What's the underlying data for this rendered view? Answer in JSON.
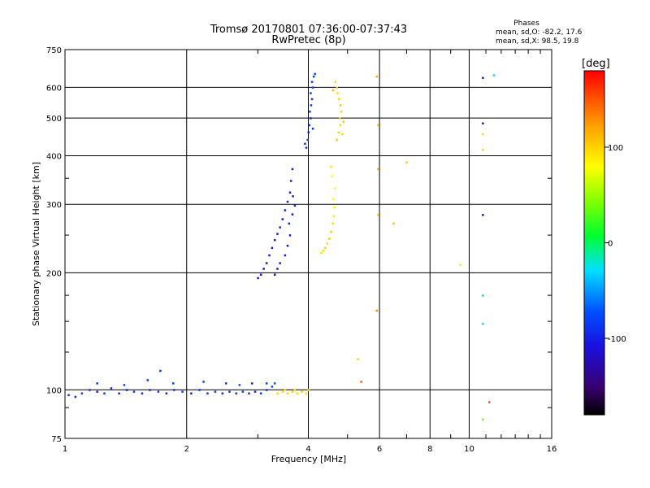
{
  "chart_data": {
    "type": "scatter",
    "title": "Tromsø 20170801 07:36:00-07:37:43",
    "subtitle": "RwPretec (8p)",
    "xlabel": "Frequency [MHz]",
    "ylabel": "Stationary phase Virtual Height [km]",
    "x_scale": "log",
    "y_scale": "log",
    "xlim": [
      1,
      16
    ],
    "ylim": [
      75,
      750
    ],
    "x_ticks": [
      1,
      2,
      4,
      6,
      8,
      10,
      16
    ],
    "x_tick_labels": [
      "1",
      "2",
      "4",
      "6",
      "8",
      "10",
      "16"
    ],
    "x_minor_ticks": [
      3,
      5,
      7,
      9,
      11,
      12,
      13,
      14,
      15
    ],
    "y_ticks": [
      75,
      100,
      200,
      300,
      400,
      500,
      600,
      750
    ],
    "y_tick_labels": [
      "75",
      "100",
      "200",
      "300",
      "400",
      "500",
      "600",
      "750"
    ],
    "y_minor_ticks": [
      90,
      125,
      150,
      175,
      250,
      350
    ],
    "grid": true,
    "legend_block": {
      "heading": "Phases",
      "line1": "mean, sd,O: -82.2, 17.6",
      "line2": "mean, sd,X:  98.5, 19.8"
    },
    "colorbar": {
      "label": "[deg]",
      "range": [
        -180,
        180
      ],
      "ticks": [
        100,
        0,
        -100
      ],
      "tick_labels": [
        "100",
        "0",
        "-100"
      ],
      "colormap": "rainbow (black-purple-blue-cyan-green-yellow-orange-red)"
    },
    "series": [
      {
        "mode": "O",
        "mean_phase": -82.2,
        "points": [
          [
            1.02,
            97,
            -95
          ],
          [
            1.06,
            96,
            -90
          ],
          [
            1.1,
            98,
            -80
          ],
          [
            1.15,
            100,
            -90
          ],
          [
            1.2,
            99,
            -100
          ],
          [
            1.25,
            98,
            -85
          ],
          [
            1.3,
            101,
            -95
          ],
          [
            1.36,
            98,
            -90
          ],
          [
            1.42,
            100,
            -100
          ],
          [
            1.48,
            99,
            -88
          ],
          [
            1.55,
            98,
            -92
          ],
          [
            1.62,
            100,
            -95
          ],
          [
            1.7,
            99,
            -85
          ],
          [
            1.78,
            98,
            -100
          ],
          [
            1.86,
            100,
            -90
          ],
          [
            1.95,
            99,
            -85
          ],
          [
            2.05,
            98,
            -95
          ],
          [
            2.15,
            100,
            -88
          ],
          [
            2.25,
            98,
            -90
          ],
          [
            2.35,
            99,
            -85
          ],
          [
            2.45,
            98,
            -95
          ],
          [
            2.55,
            99,
            -92
          ],
          [
            2.65,
            98,
            -88
          ],
          [
            2.75,
            99,
            -80
          ],
          [
            2.85,
            98,
            -90
          ],
          [
            2.95,
            99,
            -95
          ],
          [
            3.05,
            98,
            -85
          ],
          [
            3.15,
            100,
            -90
          ],
          [
            3.25,
            102,
            -75
          ],
          [
            3.3,
            104,
            -70
          ],
          [
            1.2,
            104,
            -85
          ],
          [
            1.4,
            103,
            -78
          ],
          [
            1.6,
            106,
            -82
          ],
          [
            1.85,
            104,
            -88
          ],
          [
            2.2,
            105,
            -80
          ],
          [
            2.5,
            104,
            -85
          ],
          [
            2.7,
            103,
            -72
          ],
          [
            2.9,
            104,
            -90
          ],
          [
            3.15,
            104,
            -82
          ],
          [
            1.72,
            112,
            -85
          ],
          [
            3.0,
            194,
            -110
          ],
          [
            3.05,
            198,
            -105
          ],
          [
            3.1,
            205,
            -112
          ],
          [
            3.15,
            212,
            -108
          ],
          [
            3.2,
            222,
            -100
          ],
          [
            3.25,
            232,
            -105
          ],
          [
            3.3,
            243,
            -110
          ],
          [
            3.35,
            252,
            -102
          ],
          [
            3.4,
            262,
            -98
          ],
          [
            3.45,
            275,
            -104
          ],
          [
            3.5,
            290,
            -100
          ],
          [
            3.55,
            305,
            -96
          ],
          [
            3.6,
            322,
            -102
          ],
          [
            3.62,
            345,
            -98
          ],
          [
            3.65,
            370,
            -100
          ],
          [
            3.3,
            198,
            -118
          ],
          [
            3.35,
            205,
            -112
          ],
          [
            3.4,
            212,
            -108
          ],
          [
            3.5,
            222,
            -104
          ],
          [
            3.55,
            235,
            -106
          ],
          [
            3.6,
            250,
            -100
          ],
          [
            3.58,
            268,
            -95
          ],
          [
            3.65,
            283,
            -104
          ],
          [
            3.7,
            298,
            -96
          ],
          [
            3.66,
            315,
            -102
          ],
          [
            3.95,
            420,
            -90
          ],
          [
            3.98,
            440,
            -88
          ],
          [
            4.0,
            460,
            -92
          ],
          [
            4.02,
            480,
            -85
          ],
          [
            4.05,
            500,
            -90
          ],
          [
            4.03,
            520,
            -82
          ],
          [
            4.06,
            540,
            -88
          ],
          [
            4.08,
            560,
            -85
          ],
          [
            4.05,
            580,
            -80
          ],
          [
            4.1,
            600,
            -84
          ],
          [
            4.08,
            620,
            -78
          ],
          [
            4.12,
            640,
            -82
          ],
          [
            4.15,
            650,
            -80
          ],
          [
            3.92,
            430,
            -86
          ],
          [
            4.1,
            470,
            -88
          ],
          [
            10.8,
            282,
            -105
          ],
          [
            10.8,
            635,
            -98
          ],
          [
            10.8,
            485,
            -100
          ]
        ]
      },
      {
        "mode": "X",
        "mean_phase": 98.5,
        "points": [
          [
            3.35,
            98,
            95
          ],
          [
            3.45,
            99,
            100
          ],
          [
            3.55,
            98,
            98
          ],
          [
            3.65,
            99,
            102
          ],
          [
            3.75,
            98,
            96
          ],
          [
            3.85,
            99,
            104
          ],
          [
            3.95,
            98,
            100
          ],
          [
            4.0,
            100,
            94
          ],
          [
            3.5,
            100,
            98
          ],
          [
            3.7,
            100,
            100
          ],
          [
            4.3,
            225,
            92
          ],
          [
            4.35,
            228,
            96
          ],
          [
            4.4,
            232,
            100
          ],
          [
            4.45,
            238,
            95
          ],
          [
            4.5,
            245,
            102
          ],
          [
            4.55,
            255,
            105
          ],
          [
            4.6,
            268,
            98
          ],
          [
            4.62,
            280,
            90
          ],
          [
            4.64,
            295,
            86
          ],
          [
            4.6,
            310,
            80
          ],
          [
            4.65,
            330,
            78
          ],
          [
            4.58,
            355,
            82
          ],
          [
            4.55,
            375,
            90
          ],
          [
            4.7,
            440,
            105
          ],
          [
            4.75,
            460,
            100
          ],
          [
            4.8,
            480,
            96
          ],
          [
            4.78,
            500,
            102
          ],
          [
            4.82,
            520,
            98
          ],
          [
            4.8,
            540,
            104
          ],
          [
            4.76,
            560,
            100
          ],
          [
            4.72,
            580,
            96
          ],
          [
            4.7,
            600,
            102
          ],
          [
            4.66,
            620,
            98
          ],
          [
            4.85,
            455,
            100
          ],
          [
            4.88,
            490,
            104
          ],
          [
            4.6,
            590,
            110
          ],
          [
            5.95,
            282,
            110
          ],
          [
            5.95,
            370,
            120
          ],
          [
            5.95,
            480,
            112
          ],
          [
            5.9,
            640,
            115
          ],
          [
            5.9,
            160,
            130
          ],
          [
            6.5,
            268,
            108
          ],
          [
            7.0,
            385,
            105
          ],
          [
            9.5,
            210,
            92
          ],
          [
            10.8,
            415,
            98
          ],
          [
            10.8,
            455,
            96
          ],
          [
            10.8,
            175,
            -30
          ],
          [
            10.8,
            148,
            -25
          ],
          [
            11.5,
            645,
            -20
          ],
          [
            10.8,
            84,
            40
          ],
          [
            11.2,
            93,
            150
          ],
          [
            5.4,
            105,
            145
          ],
          [
            5.3,
            120,
            100
          ]
        ]
      }
    ]
  }
}
